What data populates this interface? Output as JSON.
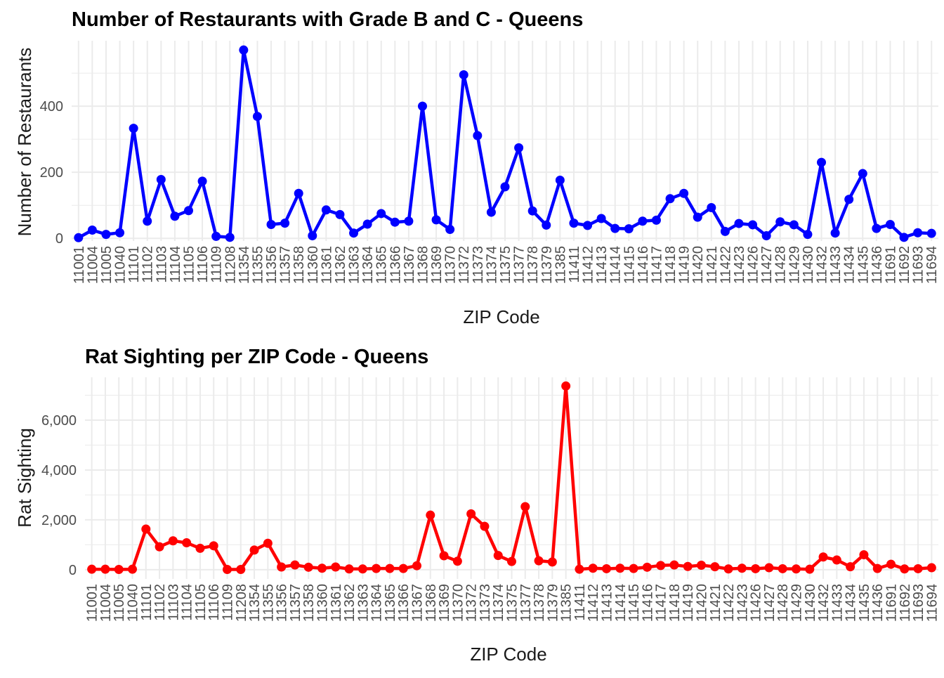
{
  "chart_data": [
    {
      "type": "line",
      "title": "Number of Restaurants with Grade B and C - Queens",
      "xlabel": "ZIP Code",
      "ylabel": "Number of Restaurants",
      "ylim": [
        -8,
        598
      ],
      "yticks": [
        0,
        200,
        400
      ],
      "ytick_labels": [
        "0",
        "200",
        "400"
      ],
      "grid": true,
      "color": "#0000FF",
      "categories": [
        "11001",
        "11004",
        "11005",
        "11040",
        "11101",
        "11102",
        "11103",
        "11104",
        "11105",
        "11106",
        "11109",
        "11208",
        "11354",
        "11355",
        "11356",
        "11357",
        "11358",
        "11360",
        "11361",
        "11362",
        "11363",
        "11364",
        "11365",
        "11366",
        "11367",
        "11368",
        "11369",
        "11370",
        "11372",
        "11373",
        "11374",
        "11375",
        "11377",
        "11378",
        "11379",
        "11385",
        "11411",
        "11412",
        "11413",
        "11414",
        "11415",
        "11416",
        "11417",
        "11418",
        "11419",
        "11420",
        "11421",
        "11422",
        "11423",
        "11426",
        "11427",
        "11428",
        "11429",
        "11430",
        "11432",
        "11433",
        "11434",
        "11435",
        "11436",
        "11691",
        "11692",
        "11693",
        "11694"
      ],
      "values": [
        2,
        25,
        12,
        17,
        333,
        52,
        178,
        67,
        84,
        173,
        6,
        3,
        570,
        369,
        42,
        46,
        136,
        8,
        86,
        72,
        16,
        43,
        75,
        49,
        52,
        400,
        56,
        27,
        495,
        311,
        79,
        156,
        274,
        83,
        40,
        176,
        46,
        39,
        60,
        30,
        29,
        52,
        55,
        120,
        136,
        64,
        93,
        21,
        45,
        41,
        8,
        50,
        41,
        12,
        230,
        16,
        118,
        196,
        30,
        42,
        3,
        17,
        15
      ]
    },
    {
      "type": "line",
      "title": "Rat Sighting per ZIP Code - Queens",
      "xlabel": "ZIP Code",
      "ylabel": "Rat Sighting",
      "ylim": [
        -370,
        7720
      ],
      "yticks": [
        0,
        2000,
        4000,
        6000
      ],
      "ytick_labels": [
        "0",
        "2,000",
        "4,000",
        "6,000"
      ],
      "grid": true,
      "color": "#FF0000",
      "categories": [
        "11001",
        "11004",
        "11005",
        "11040",
        "11101",
        "11102",
        "11103",
        "11104",
        "11105",
        "11106",
        "11109",
        "11208",
        "11354",
        "11355",
        "11356",
        "11357",
        "11358",
        "11360",
        "11361",
        "11362",
        "11363",
        "11364",
        "11365",
        "11366",
        "11367",
        "11368",
        "11369",
        "11370",
        "11372",
        "11373",
        "11374",
        "11375",
        "11377",
        "11378",
        "11379",
        "11385",
        "11411",
        "11412",
        "11413",
        "11414",
        "11415",
        "11416",
        "11417",
        "11418",
        "11419",
        "11420",
        "11421",
        "11422",
        "11423",
        "11426",
        "11427",
        "11428",
        "11429",
        "11430",
        "11432",
        "11433",
        "11434",
        "11435",
        "11436",
        "11691",
        "11692",
        "11693",
        "11694"
      ],
      "values": [
        20,
        20,
        10,
        20,
        1630,
        920,
        1160,
        1080,
        860,
        960,
        10,
        10,
        790,
        1060,
        110,
        190,
        100,
        60,
        110,
        30,
        30,
        50,
        50,
        50,
        160,
        2190,
        560,
        340,
        2240,
        1740,
        570,
        330,
        2530,
        360,
        310,
        7370,
        20,
        60,
        40,
        60,
        50,
        100,
        170,
        190,
        130,
        180,
        120,
        30,
        60,
        40,
        80,
        40,
        30,
        20,
        510,
        390,
        120,
        600,
        50,
        220,
        30,
        40,
        80
      ]
    }
  ]
}
